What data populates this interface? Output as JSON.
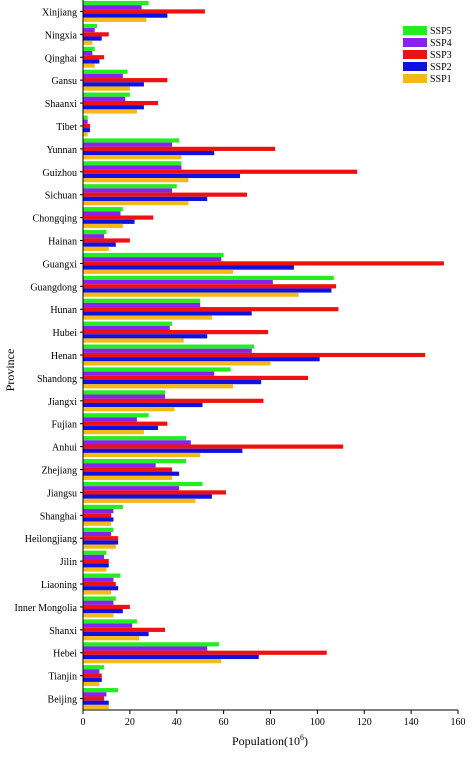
{
  "chart_data": {
    "type": "bar",
    "orientation": "horizontal",
    "title": "",
    "xlabel_main": "Population(10",
    "xlabel_sup": "6",
    "xlabel_close": ")",
    "ylabel": "Province",
    "xlim": [
      0,
      160
    ],
    "xticks": [
      0,
      20,
      40,
      60,
      80,
      100,
      120,
      140,
      160
    ],
    "grid": false,
    "legend_position": "top-right",
    "categories": [
      "Xinjiang",
      "Ningxia",
      "Qinghai",
      "Gansu",
      "Shaanxi",
      "Tibet",
      "Yunnan",
      "Guizhou",
      "Sichuan",
      "Chongqing",
      "Hainan",
      "Guangxi",
      "Guangdong",
      "Hunan",
      "Hubei",
      "Henan",
      "Shandong",
      "Jiangxi",
      "Fujian",
      "Anhui",
      "Zhejiang",
      "Jiangsu",
      "Shanghai",
      "Heilongjiang",
      "Jilin",
      "Liaoning",
      "Inner Mongolia",
      "Shanxi",
      "Hebei",
      "Tianjin",
      "Beijing"
    ],
    "series": [
      {
        "name": "SSP5",
        "color": "#22ee22",
        "values": [
          28,
          6,
          5,
          19,
          20,
          2,
          41,
          42,
          40,
          17,
          10,
          60,
          107,
          50,
          38,
          73,
          63,
          35,
          28,
          44,
          44,
          51,
          17,
          13,
          10,
          16,
          14,
          23,
          58,
          9,
          15
        ]
      },
      {
        "name": "SSP4",
        "color": "#8822ee",
        "values": [
          25,
          5,
          4,
          17,
          18,
          2,
          38,
          42,
          38,
          16,
          9,
          59,
          81,
          50,
          37,
          72,
          56,
          35,
          23,
          46,
          31,
          41,
          13,
          12,
          9,
          13,
          13,
          21,
          53,
          7,
          10
        ]
      },
      {
        "name": "SSP3",
        "color": "#ee1111",
        "values": [
          52,
          11,
          9,
          36,
          32,
          3,
          82,
          117,
          70,
          30,
          20,
          154,
          108,
          109,
          79,
          146,
          96,
          77,
          36,
          111,
          38,
          61,
          12,
          15,
          11,
          14,
          20,
          35,
          104,
          8,
          9
        ]
      },
      {
        "name": "SSP2",
        "color": "#1111dd",
        "values": [
          36,
          8,
          7,
          26,
          26,
          3,
          56,
          67,
          53,
          22,
          14,
          90,
          106,
          72,
          53,
          101,
          76,
          51,
          32,
          68,
          41,
          55,
          13,
          15,
          11,
          15,
          17,
          28,
          75,
          8,
          11
        ]
      },
      {
        "name": "SSP1",
        "color": "#f5b915",
        "values": [
          27,
          4,
          5,
          20,
          23,
          2,
          42,
          45,
          45,
          17,
          11,
          64,
          92,
          55,
          43,
          80,
          64,
          39,
          26,
          50,
          38,
          48,
          12,
          14,
          10,
          12,
          13,
          24,
          59,
          7,
          11
        ]
      }
    ]
  }
}
